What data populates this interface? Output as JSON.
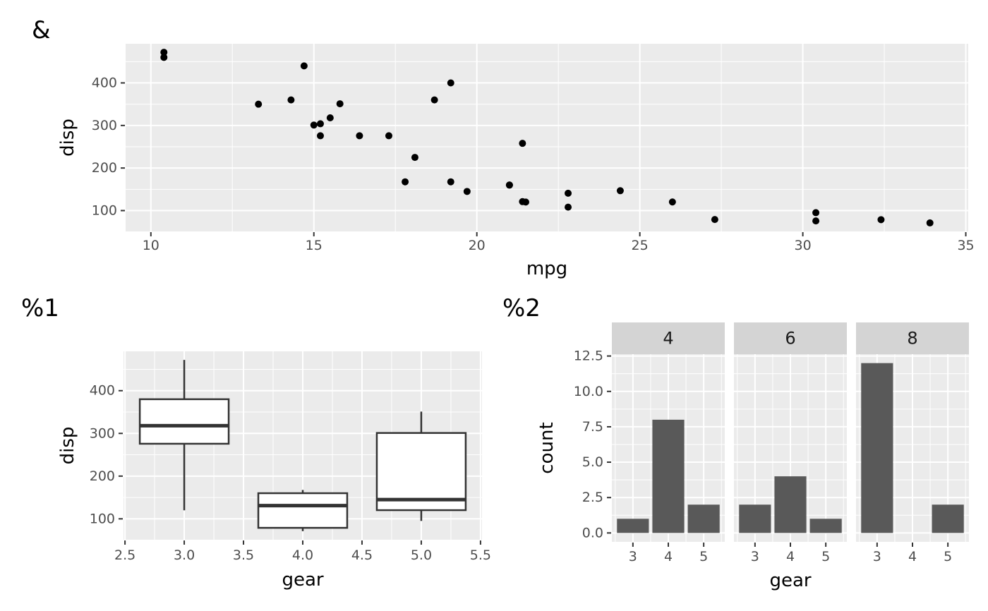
{
  "figure": {
    "tags": {
      "scatter": "&",
      "box": "%1",
      "bar": "%2"
    }
  },
  "colors": {
    "background": "#FFFFFF",
    "panel_bg": "#EBEBEB",
    "grid": "#FFFFFF",
    "strip_bg": "#D4D4D4",
    "strip_text": "#1A1A1A",
    "bar_fill": "#595959",
    "box_stroke": "#333333",
    "box_fill": "#FFFFFF",
    "point": "#000000",
    "tick_mark": "#333333",
    "tick_text": "#4D4D4D",
    "title_text": "#000000"
  },
  "chart_data": [
    {
      "id": "scatter",
      "type": "scatter",
      "tag": "&",
      "xlabel": "mpg",
      "ylabel": "disp",
      "xlim": [
        9.225,
        35.075
      ],
      "ylim": [
        51.05,
        492.05
      ],
      "x_ticks": [
        10,
        15,
        20,
        25,
        30,
        35
      ],
      "x_tick_labels": [
        "10",
        "15",
        "20",
        "25",
        "30",
        "35"
      ],
      "y_ticks": [
        100,
        200,
        300,
        400
      ],
      "y_tick_labels": [
        "100",
        "200",
        "300",
        "400"
      ],
      "x_minor_ticks": [
        12.5,
        17.5,
        22.5,
        27.5,
        32.5
      ],
      "y_minor_ticks": [
        150,
        250,
        350,
        450
      ],
      "grid": true,
      "points": [
        [
          21.0,
          160.0
        ],
        [
          21.0,
          160.0
        ],
        [
          22.8,
          108.0
        ],
        [
          21.4,
          258.0
        ],
        [
          18.7,
          360.0
        ],
        [
          18.1,
          225.0
        ],
        [
          14.3,
          360.0
        ],
        [
          24.4,
          146.7
        ],
        [
          22.8,
          140.8
        ],
        [
          19.2,
          167.6
        ],
        [
          17.8,
          167.6
        ],
        [
          16.4,
          275.8
        ],
        [
          17.3,
          275.8
        ],
        [
          15.2,
          275.8
        ],
        [
          10.4,
          472.0
        ],
        [
          10.4,
          460.0
        ],
        [
          14.7,
          440.0
        ],
        [
          32.4,
          78.7
        ],
        [
          30.4,
          75.7
        ],
        [
          33.9,
          71.1
        ],
        [
          21.5,
          120.1
        ],
        [
          15.5,
          318.0
        ],
        [
          15.2,
          304.0
        ],
        [
          13.3,
          350.0
        ],
        [
          19.2,
          400.0
        ],
        [
          27.3,
          79.0
        ],
        [
          26.0,
          120.3
        ],
        [
          30.4,
          95.1
        ],
        [
          15.8,
          351.0
        ],
        [
          19.7,
          145.0
        ],
        [
          15.0,
          301.0
        ],
        [
          21.4,
          121.0
        ]
      ]
    },
    {
      "id": "boxplot",
      "type": "boxplot",
      "tag": "%1",
      "xlabel": "gear",
      "ylabel": "disp",
      "xlim": [
        2.4875,
        5.5125
      ],
      "ylim": [
        51.05,
        492.05
      ],
      "x_ticks": [
        2.5,
        3.0,
        3.5,
        4.0,
        4.5,
        5.0,
        5.5
      ],
      "x_tick_labels": [
        "2.5",
        "3.0",
        "3.5",
        "4.0",
        "4.5",
        "5.0",
        "5.5"
      ],
      "y_ticks": [
        100,
        200,
        300,
        400
      ],
      "y_tick_labels": [
        "100",
        "200",
        "300",
        "400"
      ],
      "x_minor_ticks": [
        2.75,
        3.25,
        3.75,
        4.25,
        4.75,
        5.25
      ],
      "y_minor_ticks": [
        150,
        250,
        350,
        450
      ],
      "grid": true,
      "box_width": 0.75,
      "boxes": [
        {
          "x": 3,
          "lower_whisker": 120.1,
          "q1": 275.8,
          "median": 318.0,
          "q3": 380.0,
          "upper_whisker": 472.0
        },
        {
          "x": 4,
          "lower_whisker": 71.1,
          "q1": 78.925,
          "median": 130.9,
          "q3": 160.0,
          "upper_whisker": 167.6
        },
        {
          "x": 5,
          "lower_whisker": 95.1,
          "q1": 120.3,
          "median": 145.0,
          "q3": 301.0,
          "upper_whisker": 351.0
        }
      ]
    },
    {
      "id": "facet_bar",
      "type": "bar",
      "tag": "%2",
      "xlabel": "gear",
      "ylabel": "count",
      "facet_variable_values": [
        "4",
        "6",
        "8"
      ],
      "categories": [
        3,
        4,
        5
      ],
      "x_tick_labels": [
        "3",
        "4",
        "5"
      ],
      "series": [
        {
          "name": "4",
          "values": [
            1,
            8,
            2
          ]
        },
        {
          "name": "6",
          "values": [
            2,
            4,
            1
          ]
        },
        {
          "name": "8",
          "values": [
            12,
            0,
            2
          ]
        }
      ],
      "xlim": [
        2.405,
        5.595
      ],
      "ylim": [
        -0.63,
        12.63
      ],
      "y_ticks": [
        0,
        2.5,
        5,
        7.5,
        10,
        12.5
      ],
      "y_tick_labels": [
        "0.0",
        "2.5",
        "5.0",
        "7.5",
        "10.0",
        "12.5"
      ],
      "x_minor_ticks": [
        2.5,
        3.5,
        4.5,
        5.5
      ],
      "y_minor_ticks": [
        1.25,
        3.75,
        6.25,
        8.75,
        11.25
      ],
      "grid": true,
      "legend": "none",
      "bar_width": 0.9
    }
  ]
}
